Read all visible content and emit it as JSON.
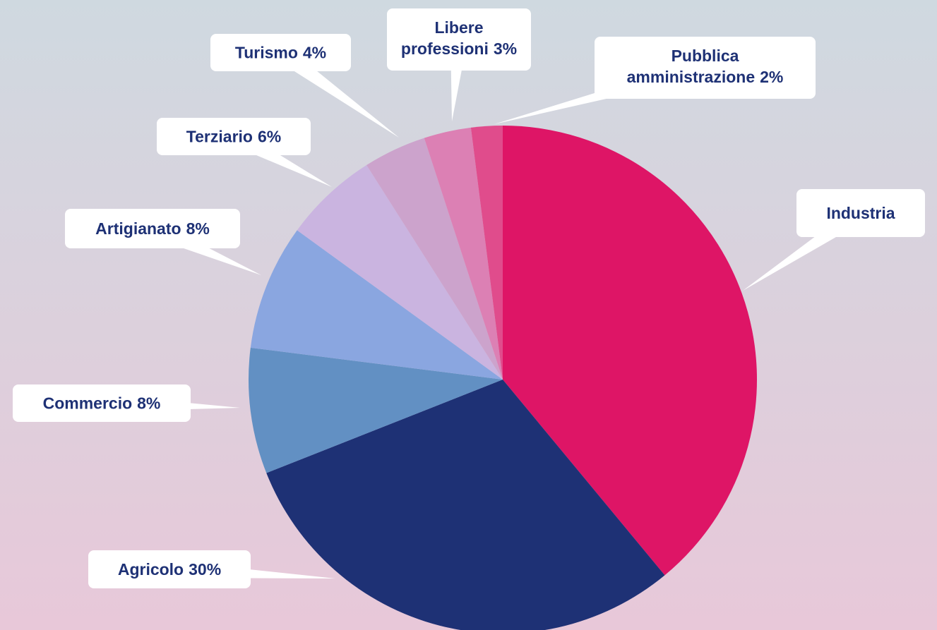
{
  "chart_data": {
    "type": "pie",
    "categories": [
      "Industria",
      "Agricolo",
      "Commercio",
      "Artigianato",
      "Terziario",
      "Turismo",
      "Libere professioni",
      "Pubblica amministrazione"
    ],
    "values": [
      39,
      30,
      8,
      8,
      6,
      4,
      3,
      2
    ],
    "value_labels": [
      null,
      "30%",
      "8%",
      "8%",
      "6%",
      "4%",
      "3%",
      "2%"
    ],
    "colors": [
      "#de1566",
      "#1e3175",
      "#6290c3",
      "#8aa6e0",
      "#cab4e0",
      "#cca3cc",
      "#dc80b4",
      "#e04c8c"
    ]
  }
}
